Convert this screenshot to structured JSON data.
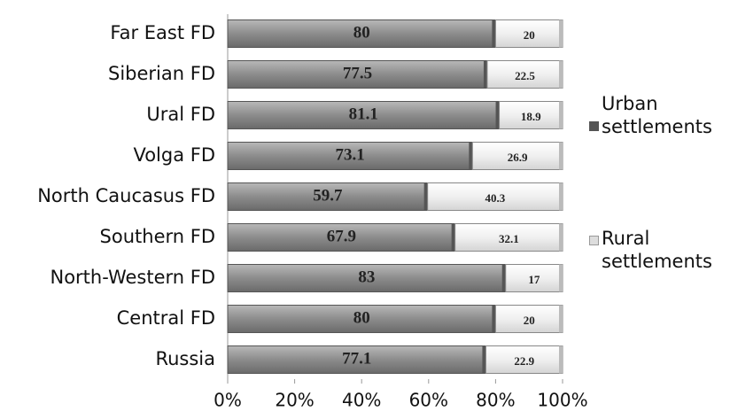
{
  "chart_data": {
    "type": "stacked-bar-horizontal",
    "categories": [
      "Far East FD",
      "Siberian FD",
      "Ural FD",
      "Volga FD",
      "North Caucasus FD",
      "Southern FD",
      "North-Western FD",
      "Central FD",
      "Russia"
    ],
    "series": [
      {
        "name": "Urban settlements",
        "color": "#8c8c8c",
        "values": [
          80,
          77.5,
          81.1,
          73.1,
          59.7,
          67.9,
          83,
          80,
          77.1
        ]
      },
      {
        "name": "Rural settlements",
        "color": "#ececec",
        "values": [
          20,
          22.5,
          18.9,
          26.9,
          40.3,
          32.1,
          17,
          20,
          22.9
        ]
      }
    ],
    "xlim": [
      0,
      100
    ],
    "xticks": [
      {
        "value": 0,
        "label": "0%"
      },
      {
        "value": 20,
        "label": "20%"
      },
      {
        "value": 40,
        "label": "40%"
      },
      {
        "value": 60,
        "label": "60%"
      },
      {
        "value": 80,
        "label": "80%"
      },
      {
        "value": 100,
        "label": "100%"
      }
    ]
  }
}
